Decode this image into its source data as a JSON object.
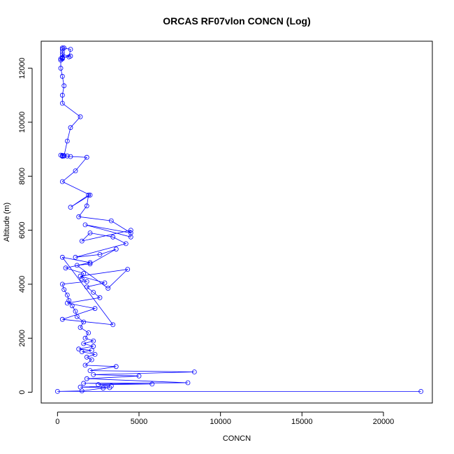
{
  "chart_data": {
    "type": "scatter",
    "title": "ORCAS RF07vlon CONCN (Log)",
    "xlabel": "CONCN",
    "ylabel": "Altitude (m)",
    "xlim": [
      -1000,
      23000
    ],
    "ylim": [
      -400,
      13000
    ],
    "x_ticks": [
      0,
      5000,
      10000,
      15000,
      20000
    ],
    "y_ticks": [
      0,
      2000,
      4000,
      6000,
      8000,
      10000,
      12000
    ],
    "grid": false,
    "legend": "none",
    "series_color": "#0000ff",
    "marker": "open-circle",
    "connected": true,
    "series": [
      {
        "x": [
          22300,
          0,
          1500,
          2800,
          3200,
          1400,
          3300,
          2500,
          5800,
          1600,
          8000,
          1800,
          5000,
          2200,
          8400,
          2000,
          3600,
          1700,
          2100,
          1800,
          2300,
          1500,
          2100,
          1300,
          2200,
          1600,
          2200,
          1700,
          1900,
          1400,
          1600,
          1200,
          1100,
          900,
          700,
          600,
          400,
          300,
          1800,
          1500,
          1600,
          500,
          2000,
          300,
          3400,
          300,
          2300,
          600,
          2600,
          2200,
          1800,
          2900,
          1400,
          4300,
          3100,
          1200,
          2000,
          3600,
          2600,
          1100,
          4200,
          3400,
          2000,
          1500,
          4500,
          4500,
          1700,
          4500,
          3300,
          1300,
          1800,
          1900,
          800,
          2000,
          300,
          1100,
          1800,
          800,
          600,
          400,
          300,
          300,
          300,
          400,
          200,
          400,
          600,
          800,
          1400,
          300,
          300,
          400,
          300,
          200,
          200,
          300,
          300,
          800,
          300,
          300,
          300,
          400,
          800,
          700,
          300,
          300,
          200,
          300,
          300
        ],
        "y": [
          30,
          30,
          50,
          150,
          170,
          190,
          230,
          280,
          300,
          330,
          350,
          500,
          600,
          650,
          750,
          800,
          950,
          1000,
          1200,
          1300,
          1400,
          1500,
          1550,
          1600,
          1700,
          1800,
          1900,
          2000,
          2200,
          2400,
          2600,
          2800,
          3000,
          3200,
          3400,
          3600,
          3800,
          4000,
          4100,
          4200,
          4400,
          4600,
          4800,
          5000,
          2500,
          2700,
          3100,
          3300,
          3500,
          3700,
          3900,
          4050,
          4300,
          4550,
          3850,
          4700,
          4750,
          5300,
          5100,
          5000,
          5500,
          5750,
          5900,
          5600,
          6000,
          5750,
          6200,
          5900,
          6350,
          6500,
          6900,
          7300,
          6850,
          7300,
          7800,
          8200,
          8700,
          8730,
          8750,
          8760,
          8750,
          8770,
          8740,
          8760,
          8780,
          8750,
          9300,
          9800,
          10200,
          10700,
          11000,
          11350,
          11700,
          12000,
          12350,
          12380,
          12400,
          12450,
          12500,
          12600,
          12700,
          12750,
          12700,
          12420,
          12400,
          12350,
          12300,
          12350,
          12750
        ]
      }
    ]
  }
}
